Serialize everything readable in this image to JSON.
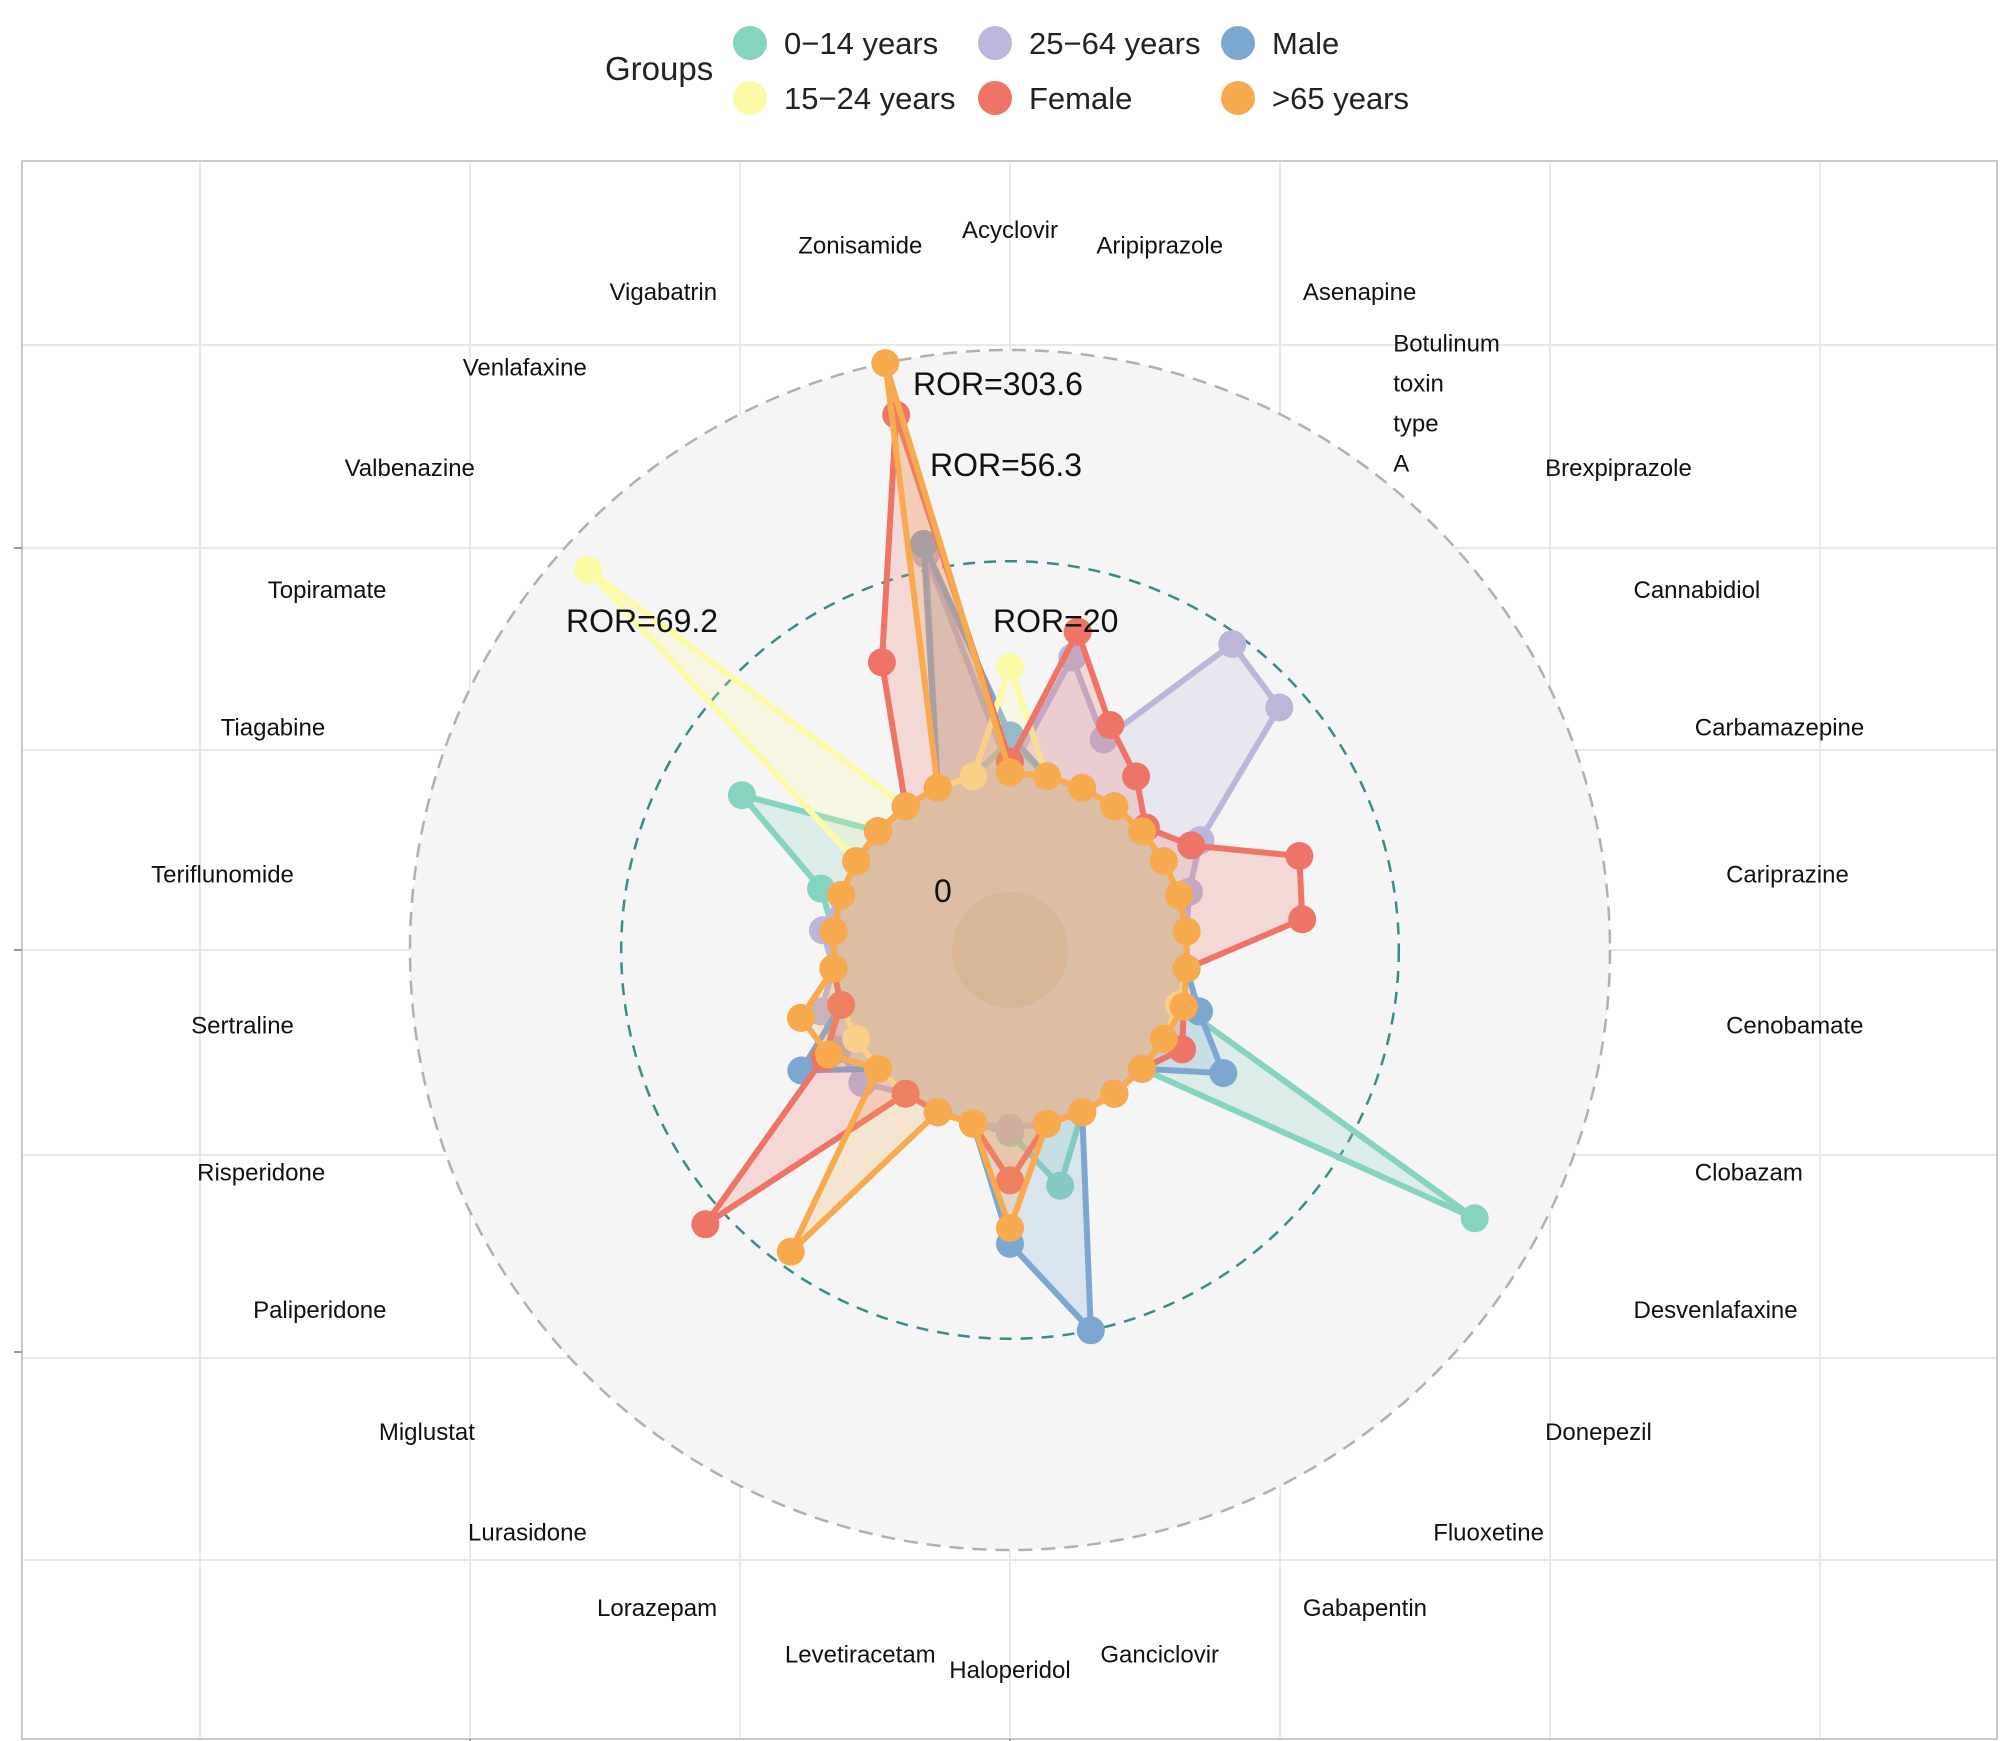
{
  "chart_data": {
    "type": "radar",
    "title": "",
    "legend": {
      "title": "Groups",
      "position": "top",
      "entries": [
        {
          "label": "0−14 years",
          "color": "#86d3c0"
        },
        {
          "label": "25−64 years",
          "color": "#bcb7da"
        },
        {
          "label": "Male",
          "color": "#7ba7d0"
        },
        {
          "label": "15−24 years",
          "color": "#fdfaa6"
        },
        {
          "label": "Female",
          "color": "#ee7467"
        },
        {
          "label": ">65 years",
          "color": "#f7aa4e"
        }
      ]
    },
    "categories": [
      "Acyclovir",
      "Aripiprazole",
      "Asenapine",
      "Botulinum toxin type A",
      "Brexpiprazole",
      "Cannabidiol",
      "Carbamazepine",
      "Cariprazine",
      "Cenobamate",
      "Clobazam",
      "Desvenlafaxine",
      "Donepezil",
      "Fluoxetine",
      "Gabapentin",
      "Ganciclovir",
      "Haloperidol",
      "Levetiracetam",
      "Lorazepam",
      "Lurasidone",
      "Miglustat",
      "Paliperidone",
      "Risperidone",
      "Sertraline",
      "Teriflunomide",
      "Tiagabine",
      "Topiramate",
      "Valbenazine",
      "Venlafaxine",
      "Vigabatrin",
      "Zonisamide"
    ],
    "radial_scale": {
      "min": 0,
      "ror20_fraction": 0.6,
      "max_fraction": 1.0,
      "description": "inner dashed ring = ROR 20, outer dashed ring = maximum"
    },
    "annotations": [
      {
        "text": "ROR=303.6"
      },
      {
        "text": "ROR=56.3"
      },
      {
        "text": "ROR=69.2"
      },
      {
        "text": "ROR=20"
      },
      {
        "text": "0"
      }
    ],
    "series": [
      {
        "name": "0−14 years",
        "color": "#86d3c0",
        "values": [
          0.26,
          0.2,
          0.2,
          0.2,
          0.2,
          0.2,
          0.2,
          0.2,
          0.2,
          0.2,
          0.88,
          0.2,
          0.2,
          0.2,
          0.32,
          0.21,
          0.2,
          0.2,
          0.2,
          0.2,
          0.2,
          0.2,
          0.2,
          0.2,
          0.24,
          0.45,
          0.2,
          0.2,
          0.2,
          0.2
        ]
      },
      {
        "name": "25−64 years",
        "color": "#bcb7da",
        "values": [
          0.2,
          0.43,
          0.3,
          0.58,
          0.55,
          0.28,
          0.22,
          0.2,
          0.2,
          0.2,
          0.2,
          0.2,
          0.2,
          0.2,
          0.2,
          0.2,
          0.2,
          0.2,
          0.2,
          0.24,
          0.24,
          0.24,
          0.2,
          0.22,
          0.2,
          0.2,
          0.2,
          0.2,
          0.2,
          0.63
        ]
      },
      {
        "name": "Male",
        "color": "#7ba7d0",
        "values": [
          0.27,
          0.2,
          0.2,
          0.2,
          0.2,
          0.2,
          0.2,
          0.2,
          0.2,
          0.24,
          0.33,
          0.2,
          0.2,
          0.2,
          0.6,
          0.42,
          0.2,
          0.2,
          0.2,
          0.2,
          0.32,
          0.2,
          0.2,
          0.2,
          0.2,
          0.2,
          0.2,
          0.2,
          0.2,
          0.65
        ]
      },
      {
        "name": "15−24 years",
        "color": "#fdfaa6",
        "values": [
          0.4,
          0.2,
          0.2,
          0.2,
          0.2,
          0.2,
          0.2,
          0.2,
          0.2,
          0.2,
          0.2,
          0.2,
          0.2,
          0.2,
          0.2,
          0.3,
          0.2,
          0.2,
          0.2,
          0.2,
          0.2,
          0.2,
          0.2,
          0.2,
          0.2,
          0.2,
          0.94,
          0.2,
          0.2,
          0.2
        ]
      },
      {
        "name": "Female",
        "color": "#ee7467",
        "values": [
          0.22,
          0.48,
          0.33,
          0.27,
          0.21,
          0.26,
          0.44,
          0.42,
          0.2,
          0.21,
          0.24,
          0.2,
          0.2,
          0.2,
          0.2,
          0.3,
          0.2,
          0.2,
          0.2,
          0.64,
          0.27,
          0.2,
          0.2,
          0.2,
          0.2,
          0.2,
          0.2,
          0.2,
          0.46,
          0.9
        ]
      },
      {
        "name": ">65 years",
        "color": "#f7aa4e",
        "values": [
          0.2,
          0.2,
          0.2,
          0.2,
          0.2,
          0.2,
          0.2,
          0.2,
          0.2,
          0.21,
          0.2,
          0.2,
          0.2,
          0.2,
          0.2,
          0.39,
          0.2,
          0.2,
          0.57,
          0.2,
          0.26,
          0.28,
          0.2,
          0.2,
          0.2,
          0.2,
          0.2,
          0.2,
          0.2,
          1.0
        ]
      }
    ]
  }
}
